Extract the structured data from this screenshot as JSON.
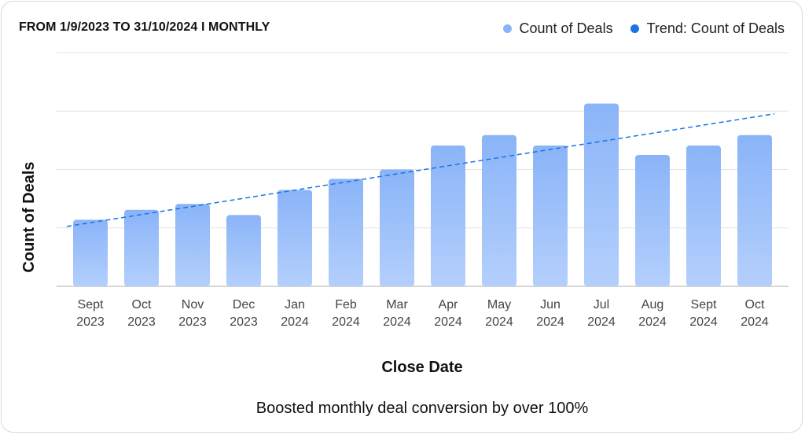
{
  "header": {
    "title": "FROM 1/9/2023 TO 31/10/2024 I MONTHLY"
  },
  "legend": {
    "items": [
      {
        "label": "Count of Deals",
        "color": "#8ab4f8",
        "icon": "legend-dot-icon"
      },
      {
        "label": "Trend: Count of Deals",
        "color": "#1a73e8",
        "icon": "legend-dot-icon"
      }
    ]
  },
  "caption": "Boosted monthly deal conversion by over 100%",
  "chart_data": {
    "type": "bar",
    "xlabel": "Close Date",
    "ylabel": "Count of Deals",
    "categories": [
      [
        "Sept",
        "2023"
      ],
      [
        "Oct",
        "2023"
      ],
      [
        "Nov",
        "2023"
      ],
      [
        "Dec",
        "2023"
      ],
      [
        "Jan",
        "2024"
      ],
      [
        "Feb",
        "2024"
      ],
      [
        "Mar",
        "2024"
      ],
      [
        "Apr",
        "2024"
      ],
      [
        "May",
        "2024"
      ],
      [
        "Jun",
        "2024"
      ],
      [
        "Jul",
        "2024"
      ],
      [
        "Aug",
        "2024"
      ],
      [
        "Sept",
        "2024"
      ],
      [
        "Oct",
        "2024"
      ]
    ],
    "series": [
      {
        "name": "Count of Deals",
        "values": [
          1.14,
          1.31,
          1.41,
          1.22,
          1.65,
          1.84,
          2.0,
          2.41,
          2.59,
          2.41,
          3.13,
          2.25,
          2.41,
          2.59
        ],
        "color": "#8ab4f8"
      },
      {
        "name": "Trend: Count of Deals",
        "type": "line-dashed",
        "values": [
          1.09,
          1.23,
          1.36,
          1.5,
          1.64,
          1.78,
          1.92,
          2.06,
          2.2,
          2.34,
          2.48,
          2.62,
          2.76,
          2.9
        ],
        "color": "#1a73e8"
      }
    ],
    "ylim": [
      0,
      4
    ],
    "grid": true,
    "y_tick_labels_shown": false,
    "legend_position": "top-right"
  }
}
